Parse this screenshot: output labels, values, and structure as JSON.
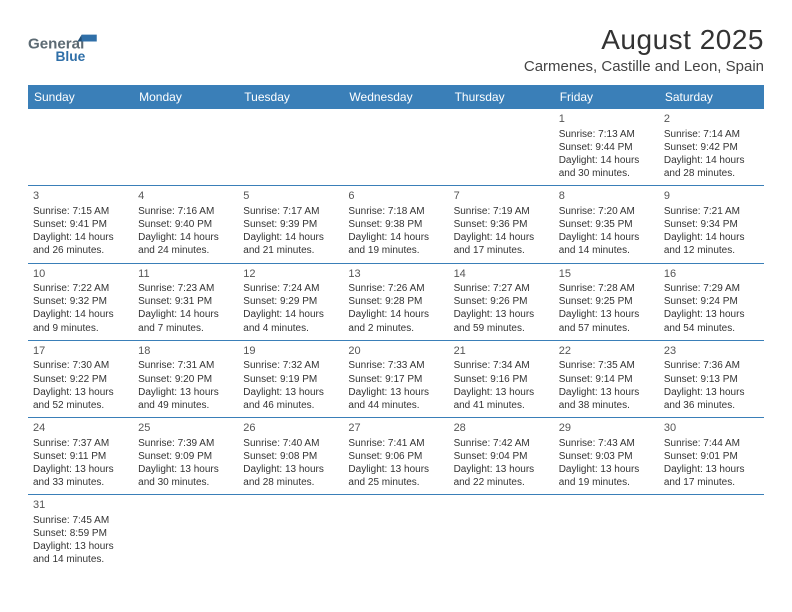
{
  "brand": {
    "name1": "General",
    "name2": "Blue"
  },
  "title": {
    "month": "August 2025",
    "location": "Carmenes, Castille and Leon, Spain"
  },
  "colors": {
    "header_bg": "#3a7fb8",
    "header_text": "#ffffff",
    "week_border": "#3a7fb8",
    "logo_general": "#5c6a73",
    "logo_blue": "#2f6fa8",
    "text": "#333333"
  },
  "weekdays": [
    "Sunday",
    "Monday",
    "Tuesday",
    "Wednesday",
    "Thursday",
    "Friday",
    "Saturday"
  ],
  "weeks": [
    [
      {
        "empty": true
      },
      {
        "empty": true
      },
      {
        "empty": true
      },
      {
        "empty": true
      },
      {
        "empty": true
      },
      {
        "num": "1",
        "sunrise": "Sunrise: 7:13 AM",
        "sunset": "Sunset: 9:44 PM",
        "day1": "Daylight: 14 hours",
        "day2": "and 30 minutes."
      },
      {
        "num": "2",
        "sunrise": "Sunrise: 7:14 AM",
        "sunset": "Sunset: 9:42 PM",
        "day1": "Daylight: 14 hours",
        "day2": "and 28 minutes."
      }
    ],
    [
      {
        "num": "3",
        "sunrise": "Sunrise: 7:15 AM",
        "sunset": "Sunset: 9:41 PM",
        "day1": "Daylight: 14 hours",
        "day2": "and 26 minutes."
      },
      {
        "num": "4",
        "sunrise": "Sunrise: 7:16 AM",
        "sunset": "Sunset: 9:40 PM",
        "day1": "Daylight: 14 hours",
        "day2": "and 24 minutes."
      },
      {
        "num": "5",
        "sunrise": "Sunrise: 7:17 AM",
        "sunset": "Sunset: 9:39 PM",
        "day1": "Daylight: 14 hours",
        "day2": "and 21 minutes."
      },
      {
        "num": "6",
        "sunrise": "Sunrise: 7:18 AM",
        "sunset": "Sunset: 9:38 PM",
        "day1": "Daylight: 14 hours",
        "day2": "and 19 minutes."
      },
      {
        "num": "7",
        "sunrise": "Sunrise: 7:19 AM",
        "sunset": "Sunset: 9:36 PM",
        "day1": "Daylight: 14 hours",
        "day2": "and 17 minutes."
      },
      {
        "num": "8",
        "sunrise": "Sunrise: 7:20 AM",
        "sunset": "Sunset: 9:35 PM",
        "day1": "Daylight: 14 hours",
        "day2": "and 14 minutes."
      },
      {
        "num": "9",
        "sunrise": "Sunrise: 7:21 AM",
        "sunset": "Sunset: 9:34 PM",
        "day1": "Daylight: 14 hours",
        "day2": "and 12 minutes."
      }
    ],
    [
      {
        "num": "10",
        "sunrise": "Sunrise: 7:22 AM",
        "sunset": "Sunset: 9:32 PM",
        "day1": "Daylight: 14 hours",
        "day2": "and 9 minutes."
      },
      {
        "num": "11",
        "sunrise": "Sunrise: 7:23 AM",
        "sunset": "Sunset: 9:31 PM",
        "day1": "Daylight: 14 hours",
        "day2": "and 7 minutes."
      },
      {
        "num": "12",
        "sunrise": "Sunrise: 7:24 AM",
        "sunset": "Sunset: 9:29 PM",
        "day1": "Daylight: 14 hours",
        "day2": "and 4 minutes."
      },
      {
        "num": "13",
        "sunrise": "Sunrise: 7:26 AM",
        "sunset": "Sunset: 9:28 PM",
        "day1": "Daylight: 14 hours",
        "day2": "and 2 minutes."
      },
      {
        "num": "14",
        "sunrise": "Sunrise: 7:27 AM",
        "sunset": "Sunset: 9:26 PM",
        "day1": "Daylight: 13 hours",
        "day2": "and 59 minutes."
      },
      {
        "num": "15",
        "sunrise": "Sunrise: 7:28 AM",
        "sunset": "Sunset: 9:25 PM",
        "day1": "Daylight: 13 hours",
        "day2": "and 57 minutes."
      },
      {
        "num": "16",
        "sunrise": "Sunrise: 7:29 AM",
        "sunset": "Sunset: 9:24 PM",
        "day1": "Daylight: 13 hours",
        "day2": "and 54 minutes."
      }
    ],
    [
      {
        "num": "17",
        "sunrise": "Sunrise: 7:30 AM",
        "sunset": "Sunset: 9:22 PM",
        "day1": "Daylight: 13 hours",
        "day2": "and 52 minutes."
      },
      {
        "num": "18",
        "sunrise": "Sunrise: 7:31 AM",
        "sunset": "Sunset: 9:20 PM",
        "day1": "Daylight: 13 hours",
        "day2": "and 49 minutes."
      },
      {
        "num": "19",
        "sunrise": "Sunrise: 7:32 AM",
        "sunset": "Sunset: 9:19 PM",
        "day1": "Daylight: 13 hours",
        "day2": "and 46 minutes."
      },
      {
        "num": "20",
        "sunrise": "Sunrise: 7:33 AM",
        "sunset": "Sunset: 9:17 PM",
        "day1": "Daylight: 13 hours",
        "day2": "and 44 minutes."
      },
      {
        "num": "21",
        "sunrise": "Sunrise: 7:34 AM",
        "sunset": "Sunset: 9:16 PM",
        "day1": "Daylight: 13 hours",
        "day2": "and 41 minutes."
      },
      {
        "num": "22",
        "sunrise": "Sunrise: 7:35 AM",
        "sunset": "Sunset: 9:14 PM",
        "day1": "Daylight: 13 hours",
        "day2": "and 38 minutes."
      },
      {
        "num": "23",
        "sunrise": "Sunrise: 7:36 AM",
        "sunset": "Sunset: 9:13 PM",
        "day1": "Daylight: 13 hours",
        "day2": "and 36 minutes."
      }
    ],
    [
      {
        "num": "24",
        "sunrise": "Sunrise: 7:37 AM",
        "sunset": "Sunset: 9:11 PM",
        "day1": "Daylight: 13 hours",
        "day2": "and 33 minutes."
      },
      {
        "num": "25",
        "sunrise": "Sunrise: 7:39 AM",
        "sunset": "Sunset: 9:09 PM",
        "day1": "Daylight: 13 hours",
        "day2": "and 30 minutes."
      },
      {
        "num": "26",
        "sunrise": "Sunrise: 7:40 AM",
        "sunset": "Sunset: 9:08 PM",
        "day1": "Daylight: 13 hours",
        "day2": "and 28 minutes."
      },
      {
        "num": "27",
        "sunrise": "Sunrise: 7:41 AM",
        "sunset": "Sunset: 9:06 PM",
        "day1": "Daylight: 13 hours",
        "day2": "and 25 minutes."
      },
      {
        "num": "28",
        "sunrise": "Sunrise: 7:42 AM",
        "sunset": "Sunset: 9:04 PM",
        "day1": "Daylight: 13 hours",
        "day2": "and 22 minutes."
      },
      {
        "num": "29",
        "sunrise": "Sunrise: 7:43 AM",
        "sunset": "Sunset: 9:03 PM",
        "day1": "Daylight: 13 hours",
        "day2": "and 19 minutes."
      },
      {
        "num": "30",
        "sunrise": "Sunrise: 7:44 AM",
        "sunset": "Sunset: 9:01 PM",
        "day1": "Daylight: 13 hours",
        "day2": "and 17 minutes."
      }
    ],
    [
      {
        "num": "31",
        "sunrise": "Sunrise: 7:45 AM",
        "sunset": "Sunset: 8:59 PM",
        "day1": "Daylight: 13 hours",
        "day2": "and 14 minutes."
      },
      {
        "empty": true
      },
      {
        "empty": true
      },
      {
        "empty": true
      },
      {
        "empty": true
      },
      {
        "empty": true
      },
      {
        "empty": true
      }
    ]
  ]
}
